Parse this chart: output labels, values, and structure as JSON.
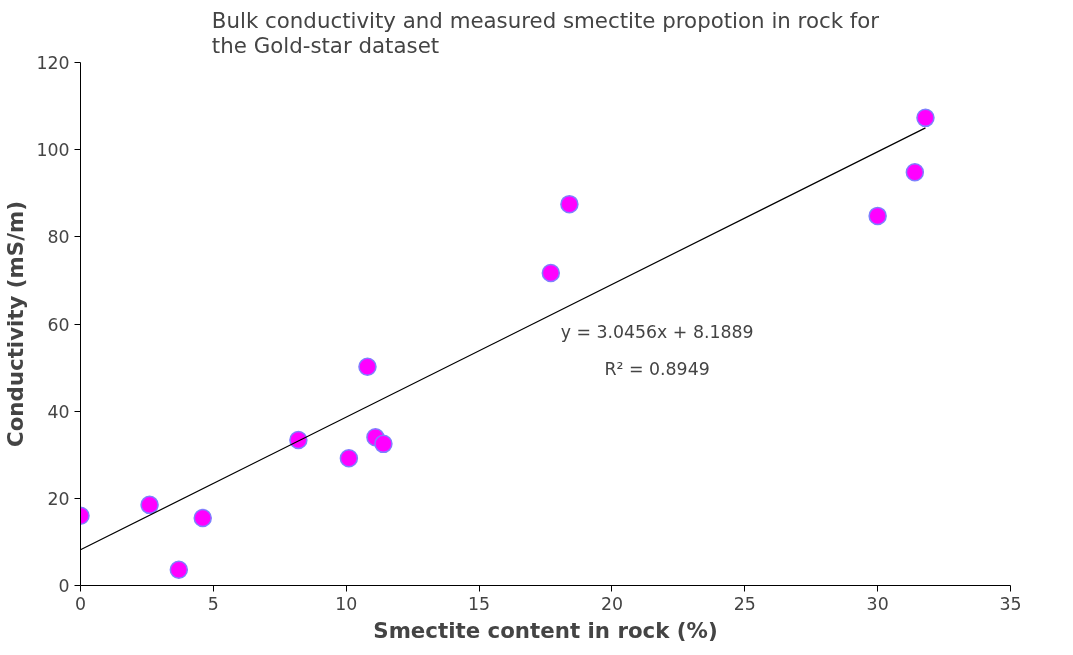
{
  "chart_data": {
    "type": "scatter",
    "title": "Bulk conductivity and measured smectite propotion in rock for the Gold-star dataset",
    "xlabel": "Smectite content in rock (%)",
    "ylabel": "Conductivity (mS/m)",
    "xlim": [
      0,
      35
    ],
    "xticks": [
      0,
      5,
      10,
      15,
      20,
      25,
      30,
      35
    ],
    "ylim": [
      0,
      120
    ],
    "yticks": [
      0,
      20,
      40,
      60,
      80,
      100,
      120
    ],
    "grid": false,
    "marker": "circle",
    "series": [
      {
        "color": "#ff00ff",
        "x": [
          0,
          2.6,
          3.7,
          4.6,
          8.2,
          10.1,
          10.8,
          11.1,
          11.4,
          17.7,
          18.4,
          30.0,
          31.4,
          31.8
        ],
        "values": [
          16,
          18.5,
          3.6,
          15.5,
          33.4,
          29.2,
          50.2,
          34,
          32.5,
          71.7,
          87.5,
          84.8,
          94.8,
          107.3
        ]
      },
      {
        "type": "line",
        "marker": "none",
        "color": "#000000",
        "x": [
          0,
          31.8
        ],
        "values": [
          8.2,
          105.0
        ]
      }
    ],
    "annotations": [
      "y = 3.0456x + 8.1889",
      "R² = 0.8949"
    ]
  }
}
